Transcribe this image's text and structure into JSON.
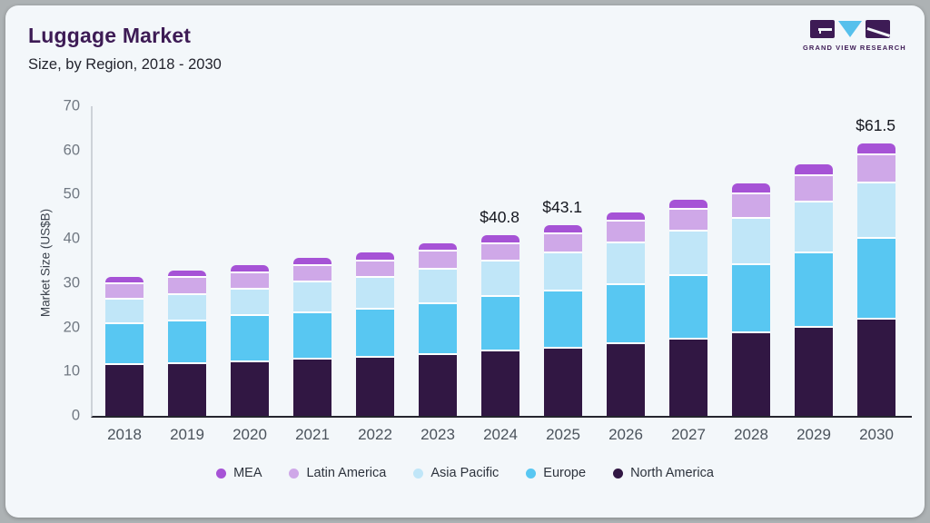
{
  "header": {
    "title": "Luggage Market",
    "subtitle": "Size, by Region, 2018 - 2030",
    "logo_text": "GRAND VIEW RESEARCH"
  },
  "colors": {
    "card_background": "#f3f7fa",
    "outer_background": "#adb2b4",
    "title_purple": "#3d1b55",
    "axis_line_dark": "#25252e",
    "axis_line_light": "#cdd2d8",
    "logo_triangle_blue": "#56c0ec"
  },
  "chart_data": {
    "type": "bar",
    "stacked": true,
    "title": "Luggage Market Size, by Region, 2018 - 2030",
    "xlabel": "",
    "ylabel": "Market Size (US$B)",
    "ylim": [
      0,
      70
    ],
    "yticks": [
      0,
      10,
      20,
      30,
      40,
      50,
      60,
      70
    ],
    "grid": false,
    "legend_position": "bottom",
    "categories": [
      "2018",
      "2019",
      "2020",
      "2021",
      "2022",
      "2023",
      "2024",
      "2025",
      "2026",
      "2027",
      "2028",
      "2029",
      "2030"
    ],
    "series": [
      {
        "name": "North America",
        "color": "#311743",
        "values": [
          11.4,
          11.8,
          12.2,
          12.7,
          13.1,
          13.8,
          14.5,
          15.2,
          16.3,
          17.2,
          18.6,
          19.9,
          21.7
        ]
      },
      {
        "name": "Europe",
        "color": "#58c7f2",
        "values": [
          9.3,
          9.6,
          10.4,
          10.4,
          11.0,
          11.4,
          12.5,
          13.0,
          13.3,
          14.4,
          15.5,
          16.9,
          18.3
        ]
      },
      {
        "name": "Asia Pacific",
        "color": "#c0e6f8",
        "values": [
          5.6,
          6.0,
          6.0,
          7.0,
          7.2,
          7.8,
          7.9,
          8.6,
          9.4,
          10.1,
          10.4,
          11.5,
          12.6
        ]
      },
      {
        "name": "Latin America",
        "color": "#cfa8e8",
        "values": [
          3.5,
          3.8,
          3.6,
          3.7,
          3.7,
          4.1,
          4.0,
          4.3,
          4.9,
          5.0,
          5.6,
          6.0,
          6.3
        ]
      },
      {
        "name": "MEA",
        "color": "#a653d6",
        "values": [
          1.6,
          1.6,
          1.9,
          1.9,
          2.0,
          1.9,
          1.9,
          2.0,
          2.0,
          2.2,
          2.4,
          2.6,
          2.6
        ]
      }
    ],
    "totals": [
      31.4,
      32.8,
      34.1,
      35.7,
      37.0,
      39.0,
      40.8,
      43.1,
      45.9,
      48.9,
      52.5,
      56.9,
      61.5
    ],
    "value_labels": {
      "2024": "$40.8",
      "2025": "$43.1",
      "2030": "$61.5"
    },
    "legend_order": [
      "MEA",
      "Latin America",
      "Asia Pacific",
      "Europe",
      "North America"
    ]
  }
}
